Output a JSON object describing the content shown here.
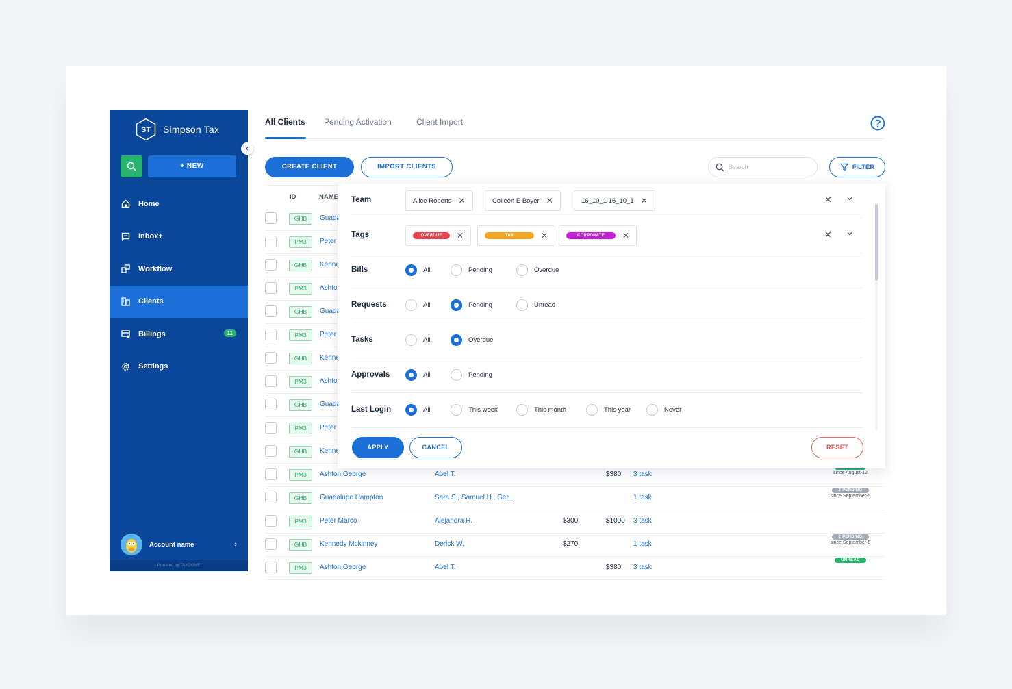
{
  "brand": {
    "initials": "ST",
    "name": "Simpson Tax"
  },
  "sidebar": {
    "new_label": "+ NEW",
    "items": [
      {
        "label": "Home",
        "icon": "home-icon"
      },
      {
        "label": "Inbox+",
        "icon": "inbox-icon"
      },
      {
        "label": "Workflow",
        "icon": "workflow-icon"
      },
      {
        "label": "Clients",
        "icon": "clients-icon",
        "active": true
      },
      {
        "label": "Billings",
        "icon": "billings-icon",
        "badge": "11"
      },
      {
        "label": "Settings",
        "icon": "settings-icon"
      }
    ],
    "account_name": "Account name",
    "powered_by": "Powered by TAXDOME"
  },
  "tabs": [
    "All Clients",
    "Pending Activation",
    "Client Import"
  ],
  "toolbar": {
    "create_label": "CREATE CLIENT",
    "import_label": "IMPORT CLIENTS",
    "search_placeholder": "Search",
    "filter_label": "FILTER"
  },
  "table": {
    "headers": {
      "id": "ID",
      "name": "NAME"
    },
    "rows": [
      {
        "id": "GHB",
        "name": "Guadalupe Hampton"
      },
      {
        "id": "PM3",
        "name": "Peter Marco"
      },
      {
        "id": "GHB",
        "name": "Kennedy Mckinney"
      },
      {
        "id": "PM3",
        "name": "Ashton George"
      },
      {
        "id": "GHB",
        "name": "Guadalupe Hampton"
      },
      {
        "id": "PM3",
        "name": "Peter Marco"
      },
      {
        "id": "GHB",
        "name": "Kennedy Mckinney"
      },
      {
        "id": "PM3",
        "name": "Ashton George"
      },
      {
        "id": "GHB",
        "name": "Guadalupe Hampton"
      },
      {
        "id": "PM3",
        "name": "Peter Marco"
      },
      {
        "id": "GHB",
        "name": "Kennedy Mckinney"
      },
      {
        "id": "PM3",
        "name": "Ashton George",
        "assignee": "Abel T.",
        "bill1": "",
        "bill2": "$380",
        "tasks": "3 task",
        "status": "UNREAD",
        "status_color": "green",
        "since": "since August-12"
      },
      {
        "id": "GHB",
        "name": "Guadalupe Hampton",
        "assignee": "Sara S., Samuel H., Ger...",
        "bill1": "",
        "bill2": "",
        "tasks": "1 task",
        "status": "2 PENDING",
        "status_color": "gray",
        "since": "since September-5"
      },
      {
        "id": "PM3",
        "name": "Peter Marco",
        "assignee": "Alejandra H.",
        "bill1": "$300",
        "bill2": "$1000",
        "tasks": "3 task",
        "status": "",
        "status_color": "",
        "since": ""
      },
      {
        "id": "GHB",
        "name": "Kennedy Mckinney",
        "assignee": "Derick W.",
        "bill1": "$270",
        "bill2": "",
        "tasks": "1 task",
        "status": "2 PENDING",
        "status_color": "gray",
        "since": "since September-5"
      },
      {
        "id": "PM3",
        "name": "Ashton George",
        "assignee": "Abel T.",
        "bill1": "",
        "bill2": "$380",
        "tasks": "3 task",
        "status": "UNREAD",
        "status_color": "green",
        "since": ""
      }
    ]
  },
  "filter": {
    "team": {
      "label": "Team",
      "chips": [
        "Alice Roberts",
        "Colleen E Boyer",
        "16_10_1 16_10_1"
      ]
    },
    "tags": {
      "label": "Tags",
      "chips": [
        {
          "label": "OVERDUE",
          "color": "#e8434a"
        },
        {
          "label": "TAX",
          "color": "#f5a623"
        },
        {
          "label": "CORPORATE",
          "color": "#c41fd6"
        }
      ]
    },
    "groups": [
      {
        "label": "Bills",
        "options": [
          "All",
          "Pending",
          "Overdue"
        ],
        "selected": 0
      },
      {
        "label": "Requests",
        "options": [
          "All",
          "Pending",
          "Unread"
        ],
        "selected": 1
      },
      {
        "label": "Tasks",
        "options": [
          "All",
          "Overdue"
        ],
        "selected": 1
      },
      {
        "label": "Approvals",
        "options": [
          "All",
          "Pending"
        ],
        "selected": 0
      },
      {
        "label": "Last Login",
        "options": [
          "All",
          "This week",
          "This month",
          "This year",
          "Never"
        ],
        "selected": 0
      }
    ],
    "apply_label": "APPLY",
    "cancel_label": "CANCEL",
    "reset_label": "RESET"
  }
}
